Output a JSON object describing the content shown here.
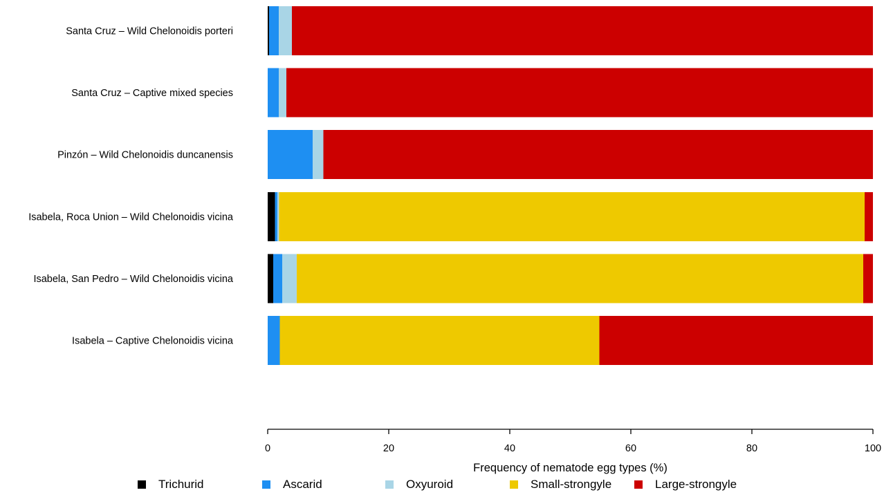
{
  "chart_data": {
    "type": "bar",
    "orientation": "horizontal",
    "stacked": true,
    "categories": [
      "Santa Cruz – Wild Chelonoidis porteri",
      "Santa Cruz – Captive mixed species",
      "Pinzón – Wild Chelonoidis duncanensis",
      "Isabela, Roca Union – Wild Chelonoidis vicina",
      "Isabela, San Pedro – Wild Chelonoidis vicina",
      "Isabela – Captive Chelonoidis vicina"
    ],
    "series": [
      {
        "name": "Trichurid",
        "color": "#000000",
        "values": [
          0.2,
          0.0,
          0.0,
          1.2,
          0.9,
          0.0
        ]
      },
      {
        "name": "Ascarid",
        "color": "#1e8ff2",
        "values": [
          1.6,
          1.8,
          7.4,
          0.4,
          1.5,
          2.0
        ]
      },
      {
        "name": "Oxyuroid",
        "color": "#a9d5e6",
        "values": [
          2.2,
          1.3,
          1.8,
          0.3,
          2.4,
          0.0
        ]
      },
      {
        "name": "Small-strongyle",
        "color": "#eec900",
        "values": [
          0.0,
          0.0,
          0.0,
          96.7,
          93.6,
          52.8
        ]
      },
      {
        "name": "Large-strongyle",
        "color": "#cc0000",
        "values": [
          96.0,
          96.9,
          90.8,
          1.4,
          1.6,
          45.2
        ]
      }
    ],
    "xlabel": "Frequency of nematode egg types (%)",
    "xlim": [
      0,
      100
    ],
    "xticks": [
      0,
      20,
      40,
      60,
      80,
      100
    ],
    "legend_position": "bottom",
    "grid": false
  }
}
